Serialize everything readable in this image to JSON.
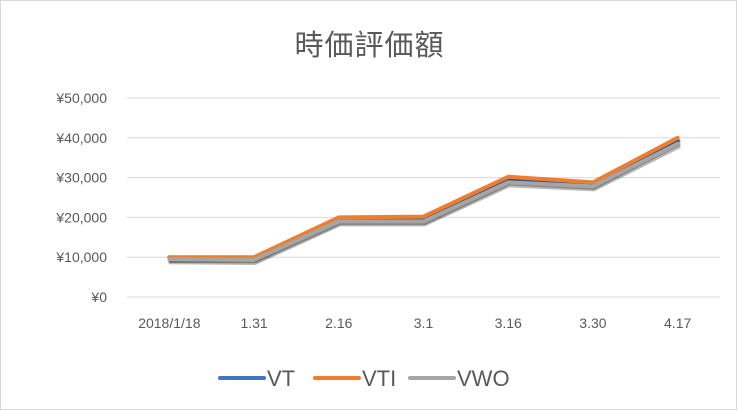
{
  "chart_data": {
    "type": "line",
    "title": "時価評価額",
    "categories": [
      "2018/1/18",
      "1.31",
      "2.16",
      "3.1",
      "3.16",
      "3.30",
      "4.17"
    ],
    "y_tick_labels": [
      "¥0",
      "¥10,000",
      "¥20,000",
      "¥30,000",
      "¥40,000",
      "¥50,000"
    ],
    "ylim": [
      0,
      50000
    ],
    "grid": true,
    "legend_position": "bottom",
    "series": [
      {
        "name": "VT",
        "color": "#4472c4",
        "values": [
          9800,
          9700,
          19300,
          19300,
          29300,
          28200,
          39200
        ]
      },
      {
        "name": "VTI",
        "color": "#ed7d31",
        "values": [
          10000,
          10000,
          20000,
          20200,
          30200,
          28800,
          40000
        ]
      },
      {
        "name": "VWO",
        "color": "#a5a5a5",
        "values": [
          9500,
          9300,
          19000,
          19000,
          28800,
          27800,
          38500
        ]
      }
    ]
  }
}
